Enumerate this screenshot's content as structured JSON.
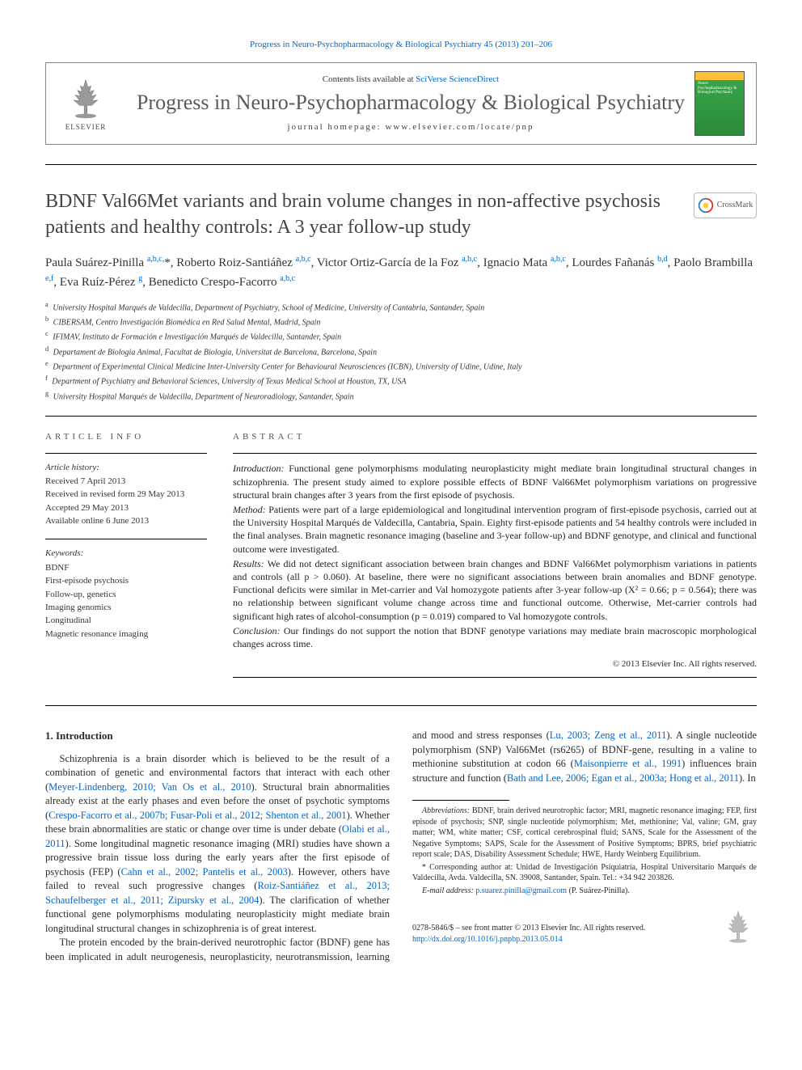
{
  "top_citation": "Progress in Neuro-Psychopharmacology & Biological Psychiatry 45 (2013) 201–206",
  "header": {
    "contents_prefix": "Contents lists available at ",
    "contents_link": "SciVerse ScienceDirect",
    "journal_name": "Progress in Neuro-Psychopharmacology & Biological Psychiatry",
    "homepage_prefix": "journal homepage: ",
    "homepage": "www.elsevier.com/locate/pnp",
    "elsevier_label": "ELSEVIER",
    "cover_text": "Neuro-Psychopharmacology & Biological Psychiatry"
  },
  "crossmark_label": "CrossMark",
  "title": "BDNF Val66Met variants and brain volume changes in non-affective psychosis patients and healthy controls: A 3 year follow-up study",
  "authors_html": "Paula Suárez-Pinilla <sup>a,b,c,</sup>*, Roberto Roiz-Santiáñez <sup>a,b,c</sup>, Victor Ortiz-García de la Foz <sup>a,b,c</sup>, Ignacio Mata <sup>a,b,c</sup>, Lourdes Fañanás <sup>b,d</sup>, Paolo Brambilla <sup>e,f</sup>, Eva Ruíz-Pérez <sup>g</sup>, Benedicto Crespo-Facorro <sup>a,b,c</sup>",
  "affiliations": [
    {
      "k": "a",
      "t": "University Hospital Marqués de Valdecilla, Department of Psychiatry, School of Medicine, University of Cantabria, Santander, Spain"
    },
    {
      "k": "b",
      "t": "CIBERSAM, Centro Investigación Biomédica en Red Salud Mental, Madrid, Spain"
    },
    {
      "k": "c",
      "t": "IFIMAV, Instituto de Formación e Investigación Marqués de Valdecilla, Santander, Spain"
    },
    {
      "k": "d",
      "t": "Departament de Biologia Animal, Facultat de Biologia, Universitat de Barcelona, Barcelona, Spain"
    },
    {
      "k": "e",
      "t": "Department of Experimental Clinical Medicine Inter-University Center for Behavioural Neurosciences (ICBN), University of Udine, Udine, Italy"
    },
    {
      "k": "f",
      "t": "Department of Psychiatry and Behavioral Sciences, University of Texas Medical School at Houston, TX, USA"
    },
    {
      "k": "g",
      "t": "University Hospital Marqués de Valdecilla, Department of Neuroradiology, Santander, Spain"
    }
  ],
  "info": {
    "label": "ARTICLE INFO",
    "history_label": "Article history:",
    "history": [
      "Received 7 April 2013",
      "Received in revised form 29 May 2013",
      "Accepted 29 May 2013",
      "Available online 6 June 2013"
    ],
    "keywords_label": "Keywords:",
    "keywords": [
      "BDNF",
      "First-episode psychosis",
      "Follow-up, genetics",
      "Imaging genomics",
      "Longitudinal",
      "Magnetic resonance imaging"
    ]
  },
  "abstract": {
    "label": "ABSTRACT",
    "segments": [
      {
        "label": "Introduction:",
        "text": " Functional gene polymorphisms modulating neuroplasticity might mediate brain longitudinal structural changes in schizophrenia. The present study aimed to explore possible effects of BDNF Val66Met polymorphism variations on progressive structural brain changes after 3 years from the first episode of psychosis."
      },
      {
        "label": "Method:",
        "text": " Patients were part of a large epidemiological and longitudinal intervention program of first-episode psychosis, carried out at the University Hospital Marqués de Valdecilla, Cantabria, Spain. Eighty first-episode patients and 54 healthy controls were included in the final analyses. Brain magnetic resonance imaging (baseline and 3-year follow-up) and BDNF genotype, and clinical and functional outcome were investigated."
      },
      {
        "label": "Results:",
        "text": " We did not detect significant association between brain changes and BDNF Val66Met polymorphism variations in patients and controls (all p > 0.060). At baseline, there were no significant associations between brain anomalies and BDNF genotype. Functional deficits were similar in Met-carrier and Val homozygote patients after 3-year follow-up (X² = 0.66; p = 0.564); there was no relationship between significant volume change across time and functional outcome. Otherwise, Met-carrier controls had significant high rates of alcohol-consumption (p = 0.019) compared to Val homozygote controls."
      },
      {
        "label": "Conclusion:",
        "text": " Our findings do not support the notion that BDNF genotype variations may mediate brain macroscopic morphological changes across time."
      }
    ],
    "copyright": "© 2013 Elsevier Inc. All rights reserved."
  },
  "body": {
    "section_heading": "1. Introduction",
    "para1_a": "Schizophrenia is a brain disorder which is believed to be the result of a combination of genetic and environmental factors that interact with each other (",
    "para1_link1": "Meyer-Lindenberg, 2010; Van Os et al., 2010",
    "para1_b": "). Structural brain abnormalities already exist at the early phases and even before the onset of psychotic symptoms (",
    "para1_link2": "Crespo-Facorro et al., 2007b;",
    "para1_c": " ",
    "para1_link3": "Fusar-Poli et al., 2012; Shenton et al., 2001",
    "para1_d": "). Whether these brain abnormalities are static or change over time is under debate (",
    "para1_link4": "Olabi et al., 2011",
    "para1_e": "). Some longitudinal magnetic resonance imaging (MRI) studies have shown a progressive brain tissue loss during the early years after the first episode of psychosis (FEP) (",
    "para1_link5": "Cahn et al., 2002; Pantelis et al., 2003",
    "para1_f": "). However, others have failed to reveal such progressive changes (",
    "para1_link6": "Roiz-Santiáñez et al., 2013; Schaufelberger et al., 2011; Zipursky et al., 2004",
    "para1_g": "). The clarification of whether functional gene polymorphisms modulating neuroplasticity might mediate brain longitudinal structural changes in schizophrenia is of great interest.",
    "para2_a": "The protein encoded by the brain-derived neurotrophic factor (BDNF) gene has been implicated in adult neurogenesis, neuroplasticity, neurotransmission, learning and mood and stress responses (",
    "para2_link1": "Lu, 2003; Zeng et al., 2011",
    "para2_b": "). A single nucleotide polymorphism (SNP) Val66Met (rs6265) of BDNF-gene, resulting in a valine to methionine substitution at codon 66 (",
    "para2_link2": "Maisonpierre et al., 1991",
    "para2_c": ") influences brain structure and function (",
    "para2_link3": "Bath and Lee, 2006; Egan et al., 2003a; Hong et al., 2011",
    "para2_d": "). In"
  },
  "footnotes": {
    "abbrev_label": "Abbreviations:",
    "abbrev_text": " BDNF, brain derived neurotrophic factor; MRI, magnetic resonance imaging; FEP, first episode of psychosis; SNP, single nucleotide polymorphism; Met, methionine; Val, valine; GM, gray matter; WM, white matter; CSF, cortical cerebrospinal fluid; SANS, Scale for the Assessment of the Negative Symptoms; SAPS, Scale for the Assessment of Positive Symptoms; BPRS, brief psychiatric report scale; DAS, Disability Assessment Schedule; HWE, Hardy Weinberg Equilibrium.",
    "corr_label": "* Corresponding author at:",
    "corr_text": " Unidad de Investigación Psiquiatría, Hospital Universitario Marqués de Valdecilla, Avda. Valdecilla, SN. 39008, Santander, Spain. Tel.: +34 942 203826.",
    "email_label": "E-mail address:",
    "email": "p.suarez.pinilla@gmail.com",
    "email_suffix": " (P. Suárez-Pinilla)."
  },
  "bottom": {
    "issn": "0278-5846/$ – see front matter © 2013 Elsevier Inc. All rights reserved.",
    "doi": "http://dx.doi.org/10.1016/j.pnpbp.2013.05.014"
  },
  "colors": {
    "link": "#0066cc",
    "text": "#2a2a2a",
    "journal_gray": "#5a5a5a",
    "cover_green": "#3aa84a"
  }
}
